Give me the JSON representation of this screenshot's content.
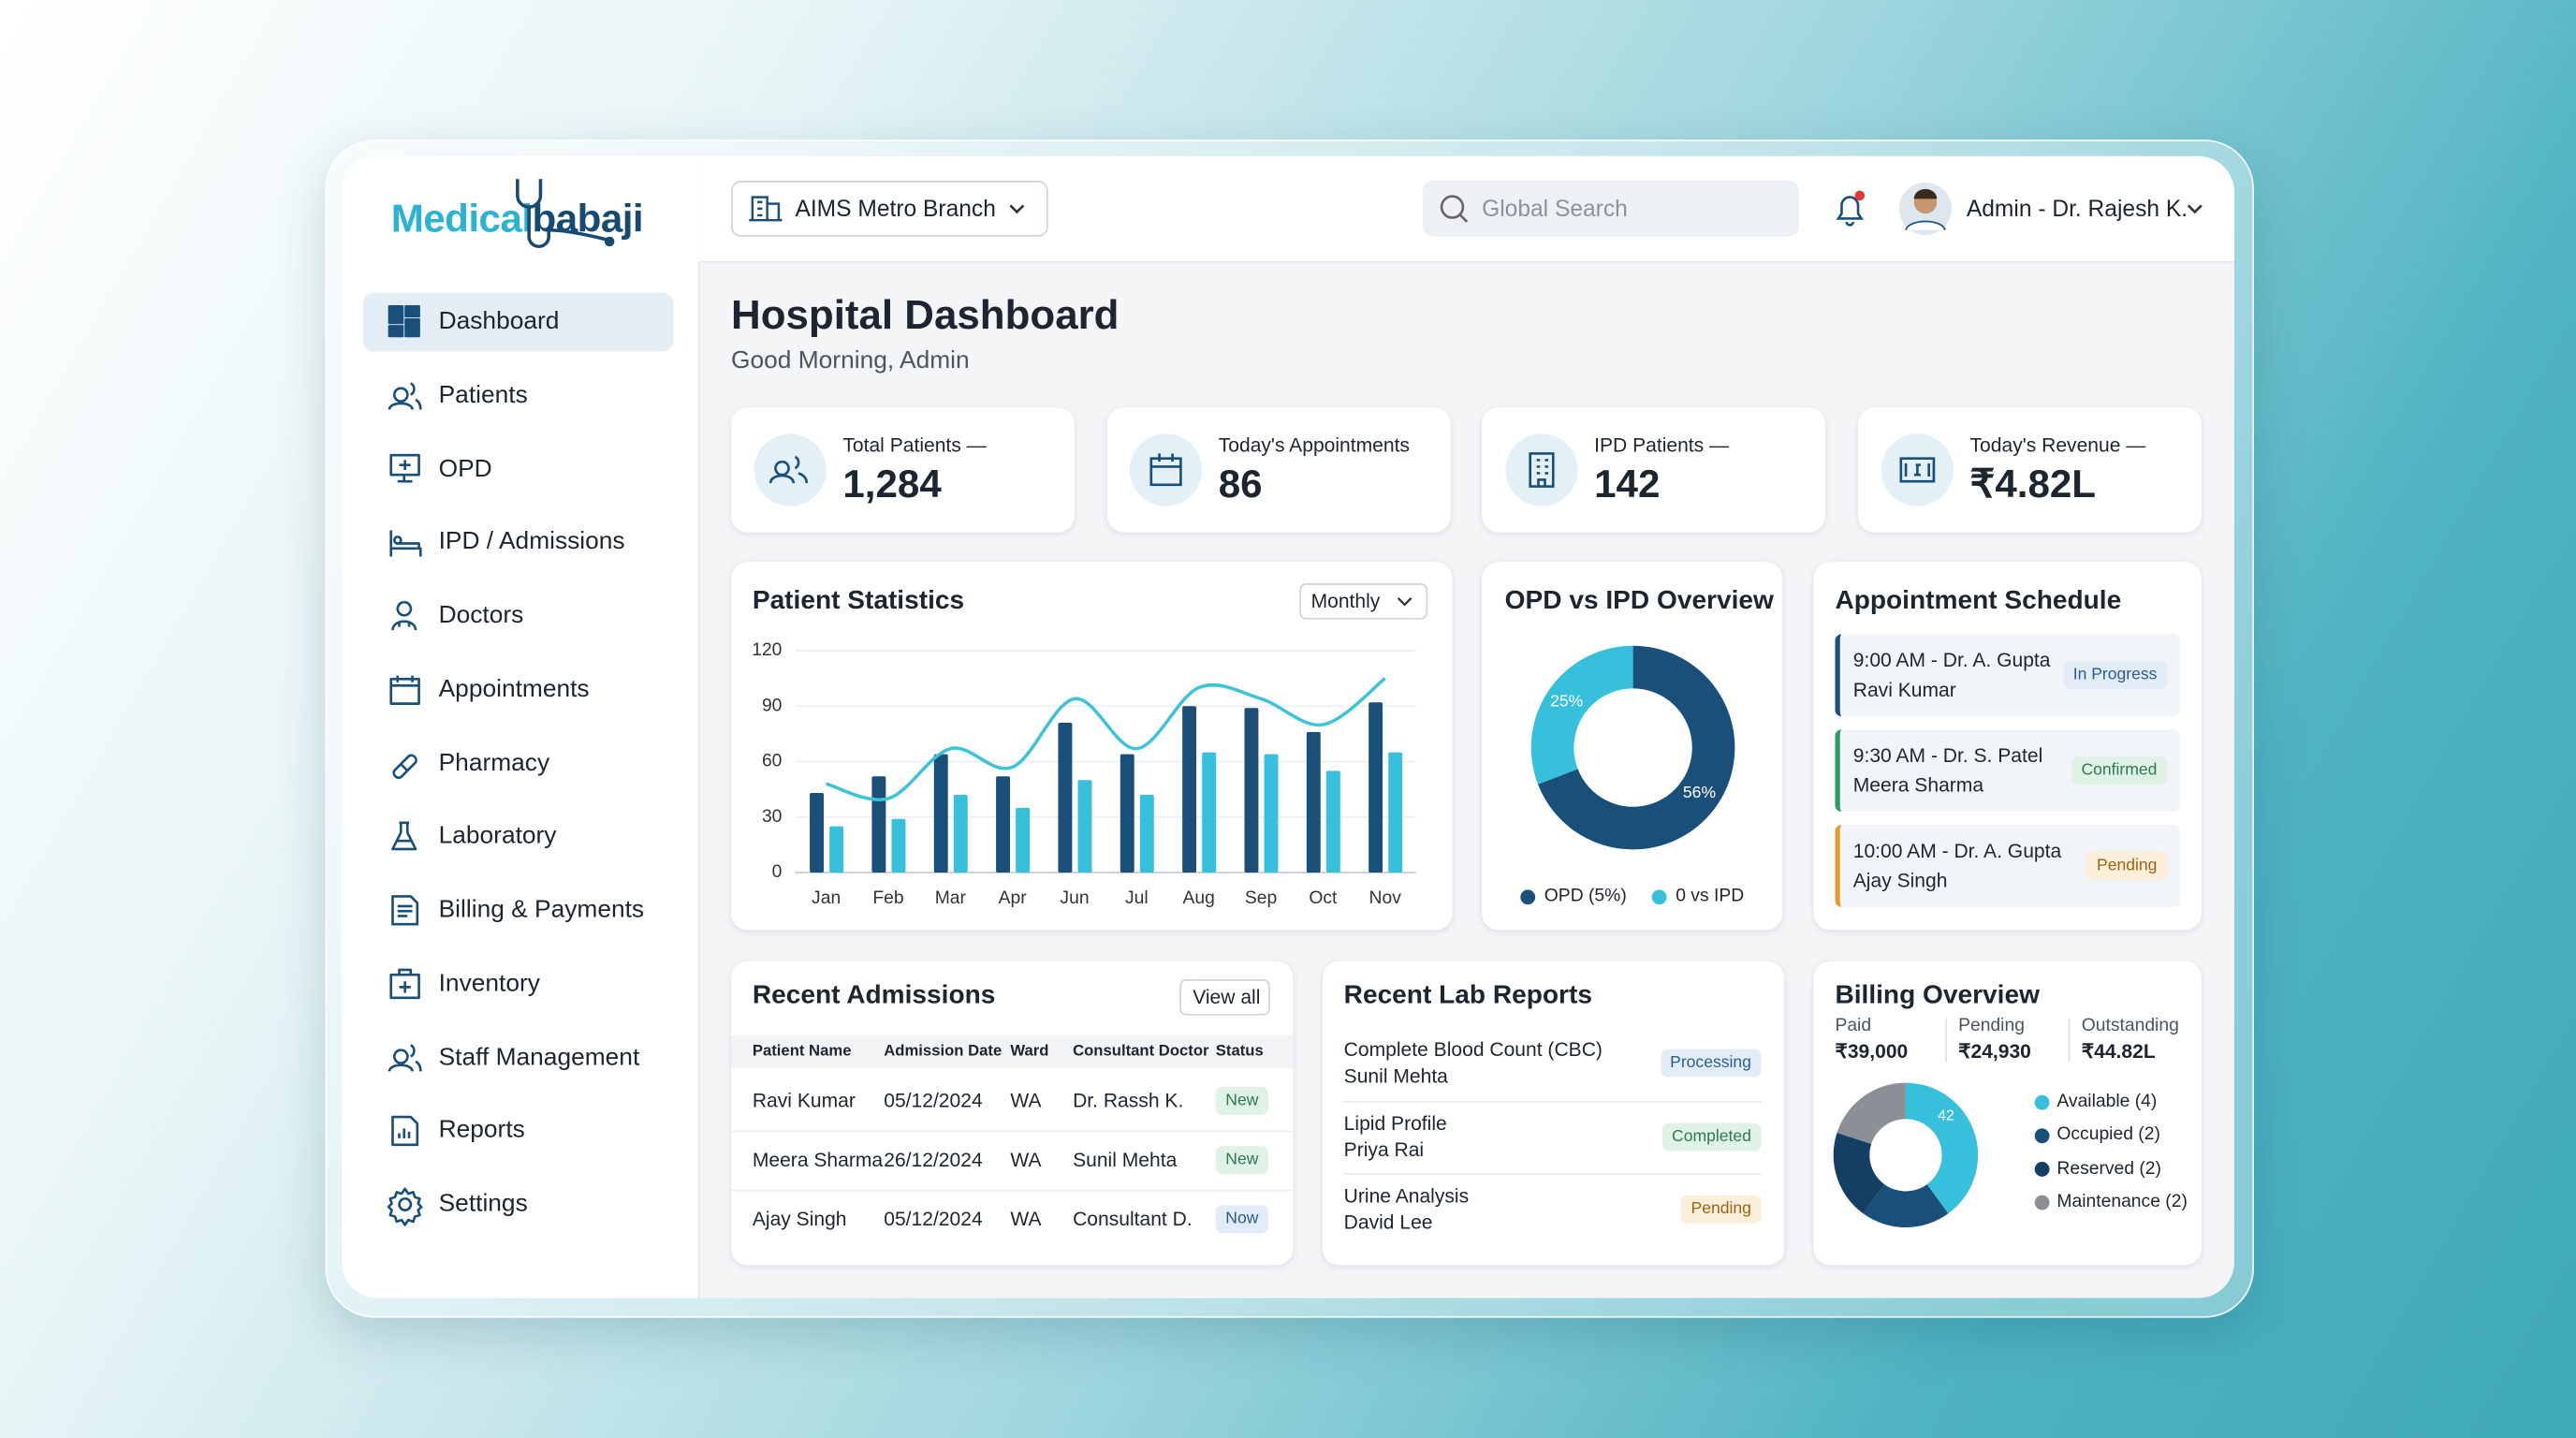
{
  "logo": {
    "part1": "Medical",
    "part2": "babaji"
  },
  "nav": [
    {
      "label": "Dashboard",
      "active": true
    },
    {
      "label": "Patients"
    },
    {
      "label": "OPD"
    },
    {
      "label": "IPD / Admissions"
    },
    {
      "label": "Doctors"
    },
    {
      "label": "Appointments"
    },
    {
      "label": "Pharmacy"
    },
    {
      "label": "Laboratory"
    },
    {
      "label": "Billing & Payments"
    },
    {
      "label": "Inventory"
    },
    {
      "label": "Staff Management"
    },
    {
      "label": "Reports"
    },
    {
      "label": "Settings"
    }
  ],
  "header": {
    "branch": "AIMS Metro Branch",
    "search_placeholder": "Global Search",
    "user": "Admin - Dr. Rajesh K."
  },
  "page": {
    "title": "Hospital Dashboard",
    "subtitle": "Good Morning, Admin"
  },
  "stats": [
    {
      "label": "Total Patients —",
      "value": "1,284"
    },
    {
      "label": "Today's Appointments",
      "value": "86"
    },
    {
      "label": "IPD Patients —",
      "value": "142"
    },
    {
      "label": "Today's Revenue —",
      "value": "₹4.82L"
    }
  ],
  "chart_data": [
    {
      "type": "bar",
      "title": "Patient Statistics",
      "period": "Monthly",
      "categories": [
        "Jan",
        "Feb",
        "Mar",
        "Apr",
        "Jun",
        "Jul",
        "Aug",
        "Sep",
        "Oct",
        "Nov"
      ],
      "series": [
        {
          "type": "bar",
          "color": "#1a4f7a",
          "values": [
            43,
            52,
            64,
            52,
            81,
            64,
            90,
            89,
            76,
            92
          ]
        },
        {
          "type": "bar",
          "color": "#36c0dc",
          "values": [
            25,
            29,
            42,
            35,
            50,
            42,
            65,
            64,
            55,
            65
          ]
        },
        {
          "type": "line",
          "color": "#3cc3d8",
          "values": [
            48,
            40,
            67,
            57,
            94,
            67,
            100,
            94,
            80,
            105
          ]
        }
      ],
      "ylim": [
        0,
        120
      ],
      "yticks": [
        0,
        30,
        60,
        90,
        120
      ],
      "grid": true
    },
    {
      "type": "pie",
      "donut": true,
      "title": "OPD vs IPD Overview",
      "categories": [
        "OPD (5%)",
        "0 vs IPD"
      ],
      "values": [
        56,
        25
      ],
      "value_labels": [
        "56%",
        "25%"
      ],
      "colors": [
        "#1a4f7a",
        "#36c0dc"
      ]
    },
    {
      "type": "pie",
      "donut": true,
      "title": "Billing Overview",
      "summary": [
        {
          "label": "Paid",
          "value": "₹39,000"
        },
        {
          "label": "Pending",
          "value": "₹24,930"
        },
        {
          "label": "Outstanding",
          "value": "₹44.82L"
        }
      ],
      "categories": [
        "Available (4)",
        "Occupied (2)",
        "Reserved (2)",
        "Maintenance (2)"
      ],
      "values": [
        4,
        2,
        2,
        2
      ],
      "colors": [
        "#36c0dc",
        "#1a4f7a",
        "#143e63",
        "#8a9096"
      ],
      "annotation": "42"
    }
  ],
  "appointments": {
    "title": "Appointment Schedule",
    "items": [
      {
        "time_doctor": "9:00 AM - Dr. A. Gupta",
        "patient": "Ravi Kumar",
        "status": "In Progress"
      },
      {
        "time_doctor": "9:30 AM - Dr. S. Patel",
        "patient": "Meera Sharma",
        "status": "Confirmed"
      },
      {
        "time_doctor": "10:00 AM - Dr. A. Gupta",
        "patient": "Ajay Singh",
        "status": "Pending"
      }
    ]
  },
  "admissions": {
    "title": "Recent Admissions",
    "action": "View all",
    "columns": [
      "Patient Name",
      "Admission Date",
      "Ward",
      "Consultant Doctor",
      "Status"
    ],
    "rows": [
      [
        "Ravi Kumar",
        "05/12/2024",
        "WA",
        "Dr. Rassh K.",
        "New"
      ],
      [
        "Meera Sharma",
        "26/12/2024",
        "WA",
        "Sunil Mehta",
        "New"
      ],
      [
        "Ajay Singh",
        "05/12/2024",
        "WA",
        "Consultant D.",
        "Now"
      ]
    ]
  },
  "lab_reports": {
    "title": "Recent Lab Reports",
    "items": [
      {
        "test": "Complete Blood Count (CBC)",
        "patient": "Sunil Mehta",
        "status": "Processing"
      },
      {
        "test": "Lipid Profile",
        "patient": "Priya Rai",
        "status": "Completed"
      },
      {
        "test": "Urine Analysis",
        "patient": "David Lee",
        "status": "Pending"
      }
    ]
  }
}
